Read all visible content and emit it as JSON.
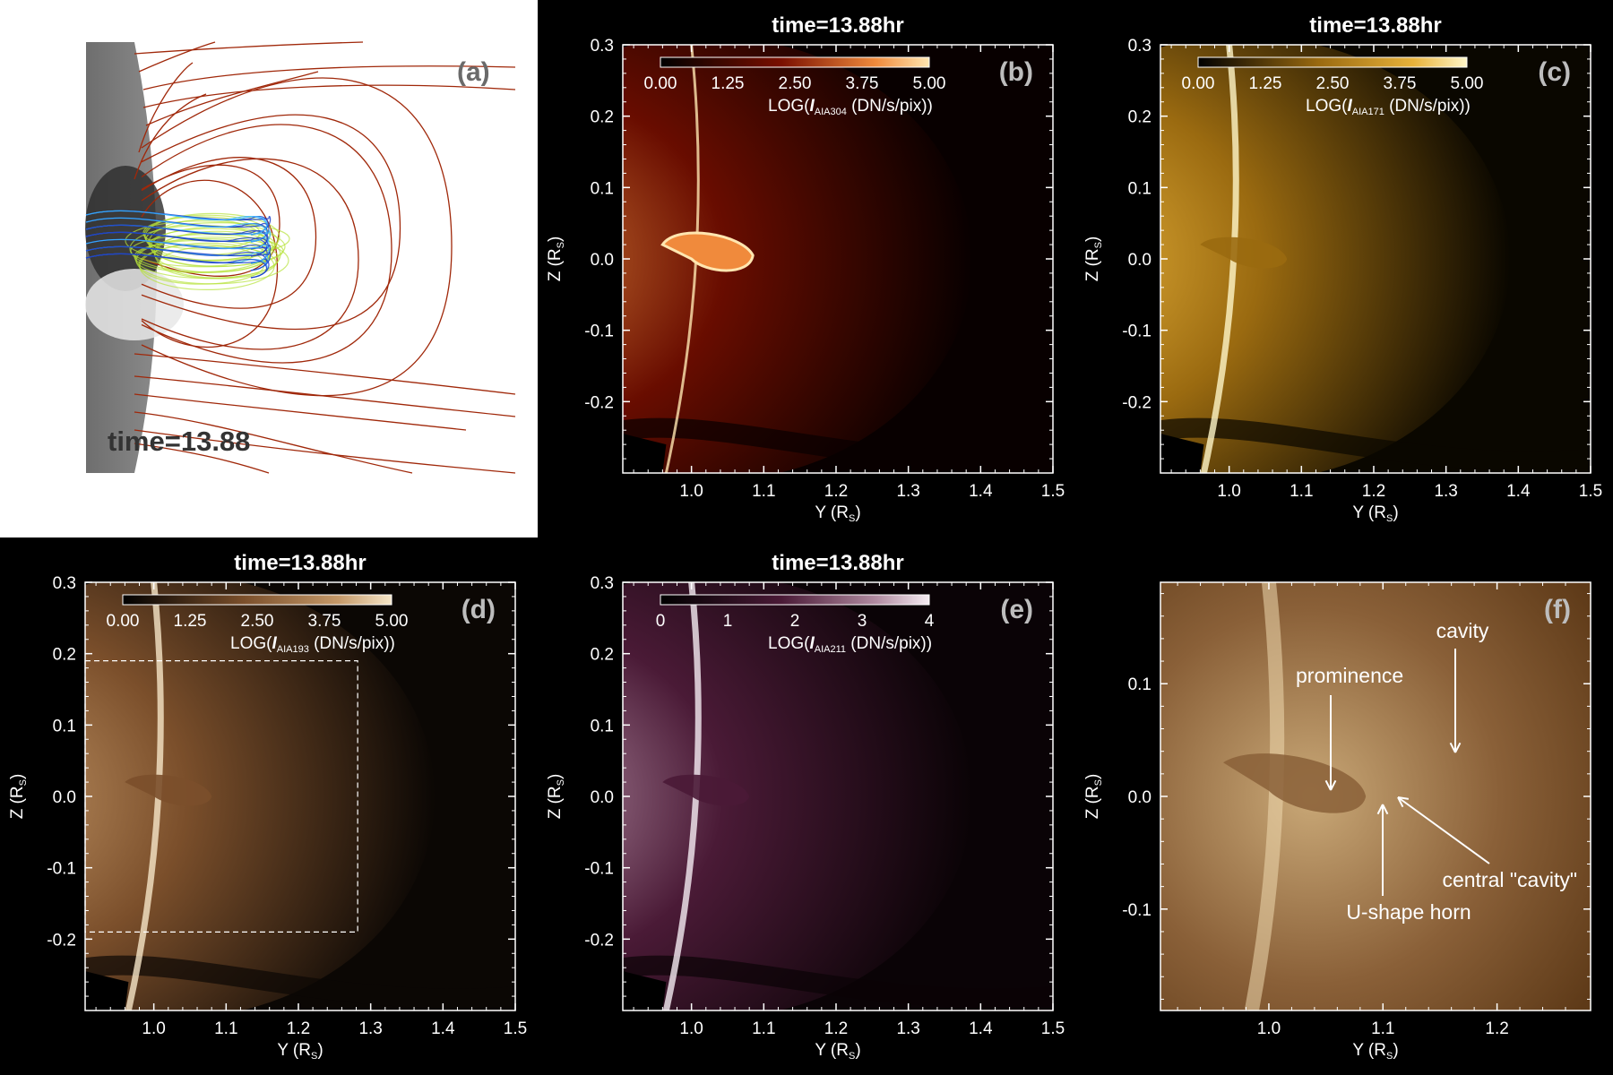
{
  "panel_a": {
    "tag": "(a)",
    "time_label": "time=13.88"
  },
  "panels": [
    {
      "id": "b",
      "tag": "(b)",
      "title": "time=13.88hr",
      "cbar_ticks": [
        "0.00",
        "1.25",
        "2.50",
        "3.75",
        "5.00"
      ],
      "cbar_label_prefix": "LOG(",
      "cbar_label_var": "I",
      "cbar_label_sub": "AIA304",
      "cbar_label_suffix": " (DN/s/pix))",
      "colors": {
        "base": "#080000",
        "mid": "#7a0f00",
        "hot": "#f08a3c",
        "bright": "#ffe6b0"
      }
    },
    {
      "id": "c",
      "tag": "(c)",
      "title": "time=13.88hr",
      "cbar_ticks": [
        "0.00",
        "1.25",
        "2.50",
        "3.75",
        "5.00"
      ],
      "cbar_label_prefix": "LOG(",
      "cbar_label_var": "I",
      "cbar_label_sub": "AIA171",
      "cbar_label_suffix": " (DN/s/pix))",
      "colors": {
        "base": "#0a0700",
        "mid": "#9a6a10",
        "hot": "#e8b23a",
        "bright": "#fff6c8"
      }
    },
    {
      "id": "d",
      "tag": "(d)",
      "title": "time=13.88hr",
      "cbar_ticks": [
        "0.00",
        "1.25",
        "2.50",
        "3.75",
        "5.00"
      ],
      "cbar_label_prefix": "LOG(",
      "cbar_label_var": "I",
      "cbar_label_sub": "AIA193",
      "cbar_label_suffix": " (DN/s/pix))",
      "colors": {
        "base": "#0b0704",
        "mid": "#7b4f2b",
        "hot": "#c49868",
        "bright": "#f6e6c8"
      }
    },
    {
      "id": "e",
      "tag": "(e)",
      "title": "time=13.88hr",
      "cbar_ticks": [
        "0",
        "1",
        "2",
        "3",
        "4"
      ],
      "cbar_label_prefix": "LOG(",
      "cbar_label_var": "I",
      "cbar_label_sub": "AIA211",
      "cbar_label_suffix": " (DN/s/pix))",
      "colors": {
        "base": "#0a0306",
        "mid": "#4a1a36",
        "hot": "#b08aa0",
        "bright": "#f5ecf2"
      }
    }
  ],
  "axes_main": {
    "xlabel": "Y (R",
    "xlabel_sub": "S",
    "ylabel": "Z (R",
    "ylabel_sub": "S",
    "xlim": [
      0.905,
      1.5
    ],
    "ylim": [
      -0.3,
      0.3
    ],
    "xticks": [
      "1.0",
      "1.1",
      "1.2",
      "1.3",
      "1.4",
      "1.5"
    ],
    "yticks": [
      "0.3",
      "0.2",
      "0.1",
      "0.0",
      "-0.1",
      "-0.2"
    ]
  },
  "panel_f": {
    "tag": "(f)",
    "xlim": [
      0.905,
      1.282
    ],
    "ylim": [
      -0.19,
      0.19
    ],
    "xticks": [
      "1.0",
      "1.1",
      "1.2"
    ],
    "yticks": [
      "0.1",
      "0.0",
      "-0.1"
    ],
    "annotations": {
      "cavity": "cavity",
      "prominence": "prominence",
      "central_cavity": "central \"cavity\"",
      "u_horn": "U-shape horn"
    },
    "colors": {
      "base": "#5e3a18",
      "mid": "#8a6038",
      "hot": "#c9a877",
      "bright": "#eed9ae"
    }
  }
}
